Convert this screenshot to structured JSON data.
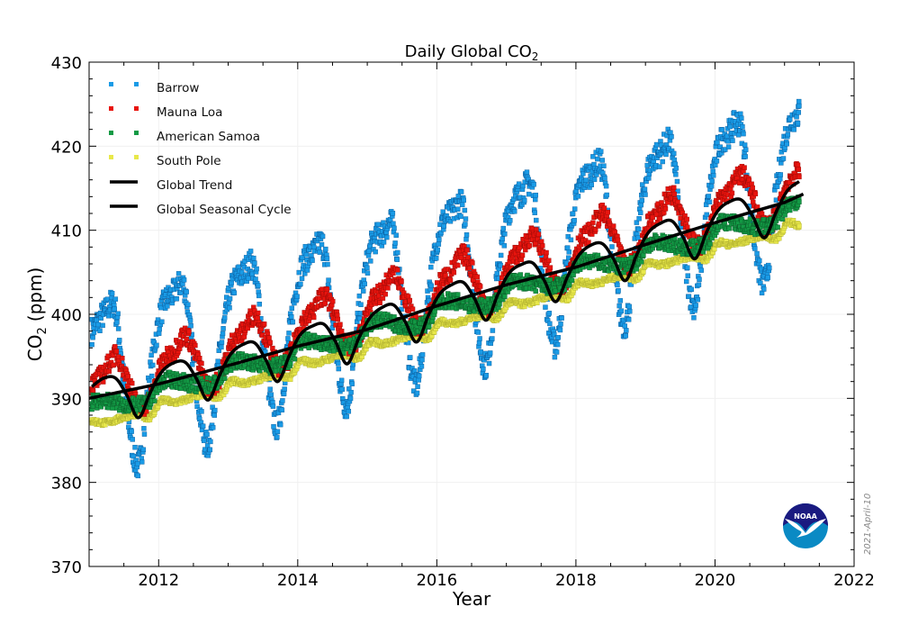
{
  "chart_data": {
    "type": "scatter",
    "title": "Daily Global CO",
    "title_subscript": "2",
    "xlabel": "Year",
    "ylabel": "CO",
    "ylabel_subscript": "2",
    "ylabel_unit": "(ppm)",
    "xlim": [
      2011,
      2022
    ],
    "ylim": [
      370,
      430
    ],
    "xticks": [
      2012,
      2014,
      2016,
      2018,
      2020,
      2022
    ],
    "yticks": [
      370,
      380,
      390,
      400,
      410,
      420,
      430
    ],
    "grid": true,
    "legend_placement": "top-left",
    "date_stamp": "2021-April-10",
    "logo_text": "NOAA",
    "x": [
      2011.04,
      2011.21,
      2011.38,
      2011.54,
      2011.71,
      2011.88,
      2012.04,
      2012.21,
      2012.38,
      2012.54,
      2012.71,
      2012.88,
      2013.04,
      2013.21,
      2013.38,
      2013.54,
      2013.71,
      2013.88,
      2014.04,
      2014.21,
      2014.38,
      2014.54,
      2014.71,
      2014.88,
      2015.04,
      2015.21,
      2015.38,
      2015.54,
      2015.71,
      2015.88,
      2016.04,
      2016.21,
      2016.38,
      2016.54,
      2016.71,
      2016.88,
      2017.04,
      2017.21,
      2017.38,
      2017.54,
      2017.71,
      2017.88,
      2018.04,
      2018.21,
      2018.38,
      2018.54,
      2018.71,
      2018.88,
      2019.04,
      2019.21,
      2019.38,
      2019.54,
      2019.71,
      2019.88,
      2020.04,
      2020.21,
      2020.38,
      2020.54,
      2020.71,
      2020.88,
      2021.04,
      2021.21
    ],
    "series": [
      {
        "name": "Barrow",
        "kind": "points",
        "color": "#1a9be6",
        "edge": "#0a5a9a",
        "values": [
          398,
          400,
          400.5,
          389,
          382,
          393,
          400.4,
          402.4,
          402.9,
          391.4,
          384.4,
          395.4,
          402.8,
          404.8,
          405.3,
          393.8,
          386.8,
          397.8,
          405.2,
          407.2,
          407.7,
          396.2,
          389.2,
          400.2,
          407.6,
          409.6,
          410.1,
          398.6,
          391.6,
          402.6,
          410,
          412,
          412.5,
          401,
          394,
          405,
          412.4,
          414.4,
          414.9,
          403.4,
          396.4,
          407.4,
          414.8,
          416.8,
          417.3,
          405.8,
          398.8,
          409.8,
          417.2,
          419.2,
          419.7,
          408.2,
          401.2,
          412.2,
          419.6,
          421.6,
          422.1,
          410.6,
          403.6,
          414.6,
          422,
          424
        ]
      },
      {
        "name": "Mauna Loa",
        "kind": "points",
        "color": "#e8140e",
        "edge": "#9a0a06",
        "values": [
          391.6,
          393.1,
          395.1,
          392.6,
          389.1,
          390.1,
          394.0,
          395.5,
          397.5,
          395.0,
          391.5,
          392.5,
          396.4,
          397.9,
          399.9,
          397.4,
          393.9,
          394.9,
          398.8,
          400.3,
          402.3,
          399.8,
          396.3,
          397.3,
          401.2,
          402.7,
          404.7,
          402.2,
          398.7,
          399.7,
          403.6,
          405.1,
          407.1,
          404.6,
          401.1,
          402.1,
          406.0,
          407.5,
          409.5,
          407.0,
          403.5,
          404.5,
          408.4,
          409.9,
          411.9,
          409.4,
          405.9,
          406.9,
          410.8,
          412.3,
          414.3,
          411.8,
          408.3,
          409.3,
          413.2,
          414.7,
          416.7,
          414.2,
          410.7,
          411.7,
          415.6,
          417.1
        ]
      },
      {
        "name": "American Samoa",
        "kind": "points",
        "color": "#139a45",
        "edge": "#0a5a28",
        "values": [
          389.5,
          389.8,
          389.5,
          389.2,
          389.2,
          389.8,
          391.9,
          392.2,
          391.9,
          391.6,
          391.6,
          392.2,
          394.2,
          394.5,
          394.2,
          393.9,
          393.9,
          394.5,
          396.6,
          396.9,
          396.6,
          396.3,
          396.3,
          396.9,
          398.9,
          399.2,
          398.9,
          398.6,
          398.6,
          399.2,
          401.3,
          401.6,
          401.3,
          401.0,
          401.0,
          401.6,
          403.6,
          403.9,
          403.6,
          403.3,
          403.3,
          403.9,
          406.0,
          406.3,
          406.0,
          405.7,
          405.7,
          406.3,
          408.3,
          408.6,
          408.3,
          408.0,
          408.0,
          408.6,
          410.7,
          411.0,
          410.7,
          410.4,
          410.4,
          411.0,
          413.0,
          413.3
        ]
      },
      {
        "name": "South Pole",
        "kind": "points",
        "color": "#e8e84a",
        "edge": "#b0b030",
        "values": [
          387.3,
          387.1,
          387.4,
          387.9,
          388.1,
          387.8,
          389.7,
          389.5,
          389.8,
          390.3,
          390.5,
          390.2,
          392.0,
          391.8,
          392.1,
          392.6,
          392.8,
          392.5,
          394.4,
          394.2,
          394.5,
          395.0,
          395.2,
          394.9,
          396.7,
          396.5,
          396.8,
          397.3,
          397.5,
          397.2,
          399.1,
          398.9,
          399.2,
          399.7,
          399.9,
          399.6,
          401.4,
          401.2,
          401.5,
          402.0,
          402.2,
          401.9,
          403.8,
          403.6,
          403.9,
          404.4,
          404.6,
          404.3,
          406.1,
          405.9,
          406.2,
          406.7,
          406.9,
          406.6,
          408.5,
          408.3,
          408.6,
          409.1,
          409.3,
          409.0,
          410.8,
          410.6
        ]
      },
      {
        "name": "Global Trend",
        "kind": "line",
        "color": "#000000",
        "x": [
          2011,
          2012,
          2013,
          2014,
          2015,
          2016,
          2017,
          2018,
          2019,
          2020,
          2021,
          2021.27
        ],
        "values": [
          390.0,
          391.7,
          393.9,
          396.2,
          398.2,
          401.0,
          403.5,
          405.6,
          408.3,
          410.9,
          413.3,
          414.3
        ]
      },
      {
        "name": "Global Seasonal Cycle",
        "kind": "line",
        "color": "#000000",
        "values": [
          391.4,
          392.4,
          392.4,
          390.4,
          387.7,
          390.7,
          393.1,
          394.2,
          394.3,
          392.4,
          389.8,
          392.8,
          395.3,
          396.4,
          396.6,
          394.6,
          392.0,
          395.1,
          397.6,
          398.6,
          398.8,
          396.8,
          394.1,
          397.2,
          399.6,
          400.8,
          401.1,
          399.2,
          396.7,
          399.9,
          402.4,
          403.5,
          403.8,
          401.9,
          399.3,
          402.4,
          404.9,
          405.9,
          406.1,
          404.1,
          401.5,
          404.5,
          407.0,
          408.2,
          408.4,
          406.6,
          404.0,
          407.2,
          409.7,
          410.8,
          411.1,
          409.2,
          406.6,
          409.8,
          412.3,
          413.4,
          413.6,
          411.7,
          409.1,
          412.2,
          414.7,
          415.8
        ]
      }
    ]
  }
}
